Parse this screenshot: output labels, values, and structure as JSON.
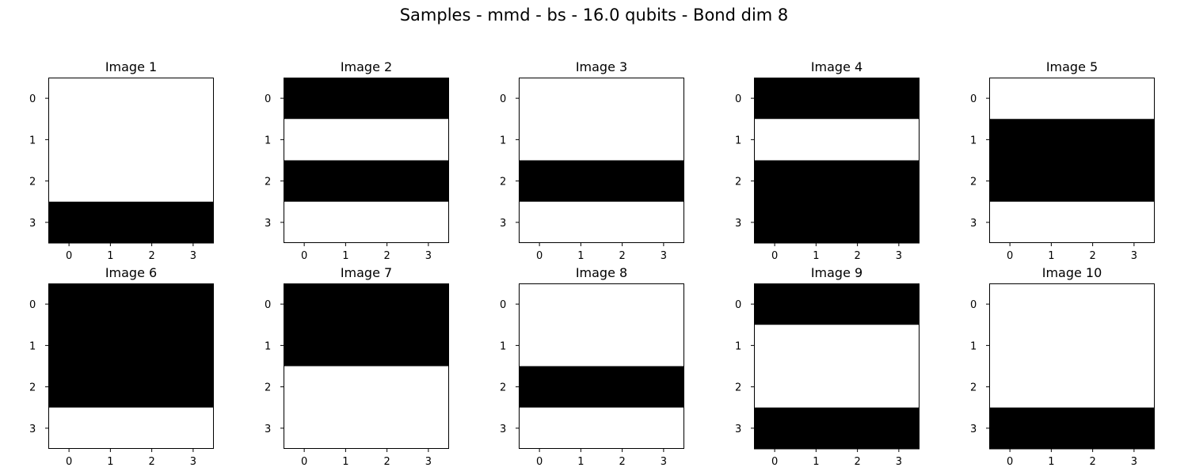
{
  "chart_data": {
    "type": "heatmap",
    "title": "Samples - mmd - bs - 16.0 qubits - Bond dim 8",
    "colormap": "gray",
    "colors": {
      "low": "#000000",
      "high": "#ffffff"
    },
    "x_ticks": [
      "0",
      "1",
      "2",
      "3"
    ],
    "y_ticks": [
      "0",
      "1",
      "2",
      "3"
    ],
    "layout": {
      "rows": 2,
      "cols": 5
    },
    "panels": [
      {
        "title": "Image 1",
        "rows": [
          1,
          1,
          1,
          0
        ]
      },
      {
        "title": "Image 2",
        "rows": [
          0,
          1,
          0,
          1
        ]
      },
      {
        "title": "Image 3",
        "rows": [
          1,
          1,
          0,
          1
        ]
      },
      {
        "title": "Image 4",
        "rows": [
          0,
          1,
          0,
          0
        ]
      },
      {
        "title": "Image 5",
        "rows": [
          1,
          0,
          0,
          1
        ]
      },
      {
        "title": "Image 6",
        "rows": [
          0,
          0,
          0,
          1
        ]
      },
      {
        "title": "Image 7",
        "rows": [
          0,
          0,
          1,
          1
        ]
      },
      {
        "title": "Image 8",
        "rows": [
          1,
          1,
          0,
          1
        ]
      },
      {
        "title": "Image 9",
        "rows": [
          0,
          1,
          1,
          0
        ]
      },
      {
        "title": "Image 10",
        "rows": [
          1,
          1,
          1,
          0
        ]
      }
    ]
  }
}
